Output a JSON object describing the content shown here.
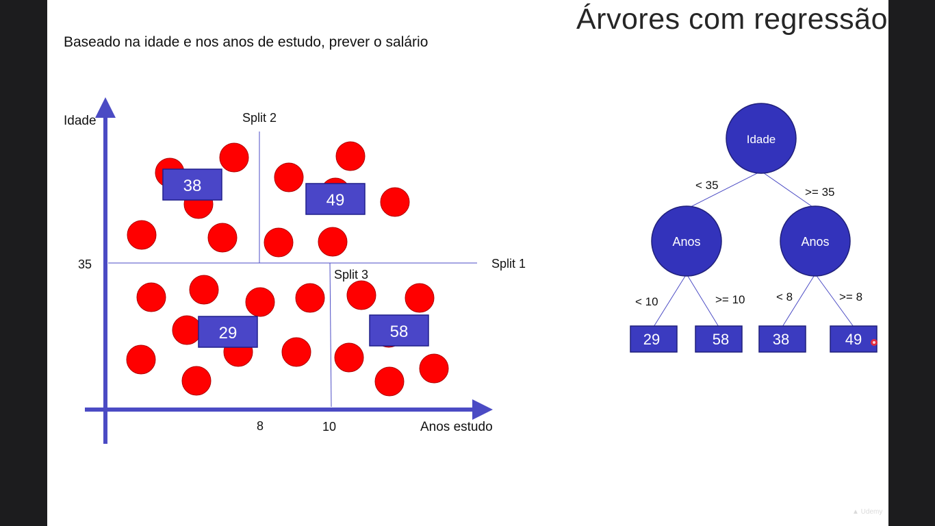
{
  "slide": {
    "title": "Árvores com regressão",
    "subtitle": "Baseado na idade e nos anos de estudo, prever o salário"
  },
  "plot": {
    "y_axis_label": "Idade",
    "x_axis_label": "Anos estudo",
    "y_tick": "35",
    "x_ticks": [
      "8",
      "10"
    ],
    "split_labels": {
      "split1": "Split 1",
      "split2": "Split 2",
      "split3": "Split 3"
    },
    "region_values": {
      "top_left": "38",
      "top_right": "49",
      "bottom_left": "29",
      "bottom_right": "58"
    }
  },
  "tree": {
    "root": "Idade",
    "left_node": "Anos",
    "right_node": "Anos",
    "edges": {
      "root_left": "< 35",
      "root_right": ">= 35",
      "left_left": "< 10",
      "left_right": ">= 10",
      "right_left": "< 8",
      "right_right": ">= 8"
    },
    "leaves": [
      "29",
      "58",
      "38",
      "49"
    ]
  },
  "colors": {
    "axis": "#4b4bc4",
    "point_fill": "#ff0000",
    "point_stroke": "#b00000",
    "box_fill": "#4a46c8",
    "box_stroke": "#1f1f8a",
    "node_fill": "#3333bb",
    "node_stroke": "#1f1f7a",
    "leaf_fill": "#3b3bc0",
    "line": "#4b4bc4"
  },
  "icons": {
    "watermark": "udemy-logo-icon",
    "cursor": "red-cursor-dot-icon"
  }
}
